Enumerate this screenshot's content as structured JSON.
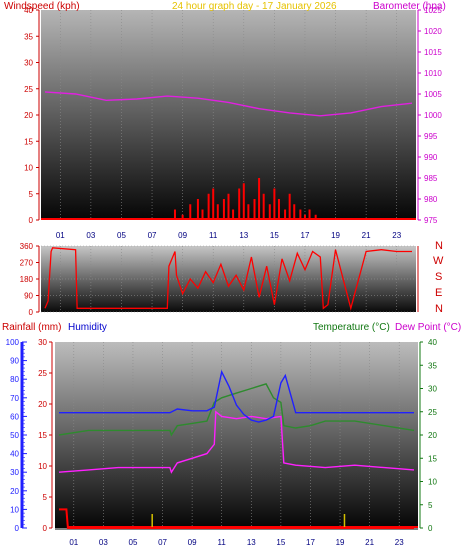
{
  "header": {
    "left_label": "Windspeed (kph)",
    "center_label": "24 hour graph day - 17 January 2026",
    "right_label": "Barometer (hpa)"
  },
  "panel3_header": {
    "rain_label": "Rainfall (mm)",
    "humidity_label": "Humidity",
    "temp_label": "Temperature (°C)",
    "dew_label": "Dew Point (°C)"
  },
  "compass": [
    "N",
    "W",
    "S",
    "E",
    "N"
  ],
  "x_ticks": [
    "01",
    "03",
    "05",
    "07",
    "09",
    "11",
    "13",
    "15",
    "17",
    "19",
    "21",
    "23"
  ],
  "colors": {
    "wind": "#ff0000",
    "barometer": "#e020e0",
    "temperature": "#2e8b2e",
    "humidity": "#2020ff",
    "dew_point": "#ff20ff",
    "rainfall": "#ff0000",
    "title": "#ffd700"
  },
  "chart_data": [
    {
      "type": "line",
      "panel": "wind_barometer",
      "x_ticks": [
        "01",
        "03",
        "05",
        "07",
        "09",
        "11",
        "13",
        "15",
        "17",
        "19",
        "21",
        "23"
      ],
      "ylabel": "Windspeed (kph)",
      "y2label": "Barometer (hpa)",
      "ylim": [
        0,
        40
      ],
      "yticks": [
        0,
        5,
        10,
        15,
        20,
        25,
        30,
        35,
        40
      ],
      "y2lim": [
        975,
        1025
      ],
      "y2ticks": [
        975,
        980,
        985,
        990,
        995,
        1000,
        1005,
        1010,
        1015,
        1020,
        1025
      ],
      "series": [
        {
          "name": "Barometer (hpa)",
          "axis": "right",
          "x": [
            0,
            2,
            4,
            6,
            8,
            10,
            12,
            14,
            16,
            18,
            20,
            22,
            24
          ],
          "values": [
            1005.5,
            1005.0,
            1003.5,
            1003.8,
            1004.5,
            1004.0,
            1003.0,
            1001.5,
            1000.5,
            999.8,
            1000.5,
            1002.0,
            1002.8
          ]
        },
        {
          "name": "Windspeed (kph)",
          "axis": "left",
          "style": "bars",
          "x": [
            8.5,
            9.0,
            9.5,
            10.0,
            10.3,
            10.7,
            11.0,
            11.3,
            11.7,
            12.0,
            12.3,
            12.7,
            13.0,
            13.3,
            13.7,
            14.0,
            14.3,
            14.7,
            15.0,
            15.3,
            15.7,
            16.0,
            16.3,
            16.7,
            17.0,
            17.3,
            17.7
          ],
          "values": [
            2,
            1,
            3,
            4,
            2,
            5,
            6,
            3,
            4,
            5,
            2,
            6,
            7,
            3,
            4,
            8,
            5,
            3,
            6,
            4,
            2,
            5,
            3,
            2,
            1,
            2,
            1
          ]
        }
      ]
    },
    {
      "type": "line",
      "panel": "wind_direction",
      "x_ticks": [
        "01",
        "03",
        "05",
        "07",
        "09",
        "11",
        "13",
        "15",
        "17",
        "19",
        "21",
        "23"
      ],
      "ylabel": "",
      "ylim": [
        0,
        360
      ],
      "yticks": [
        0,
        90,
        180,
        270,
        360
      ],
      "y_labels_extra": [
        "0",
        "90",
        "180",
        "270",
        "360"
      ],
      "series": [
        {
          "name": "Wind direction",
          "x": [
            0,
            0.2,
            0.4,
            0.5,
            2.0,
            2.1,
            5.0,
            5.1,
            8.0,
            8.1,
            8.5,
            8.6,
            9.0,
            9.5,
            10.0,
            10.5,
            11.0,
            11.5,
            12.0,
            12.5,
            13.0,
            13.5,
            14.0,
            14.5,
            15.0,
            15.5,
            16.0,
            16.5,
            17.0,
            17.5,
            18.0,
            18.2,
            18.5,
            19.0,
            20.0,
            21.0,
            22.0,
            23.0,
            24.0
          ],
          "values": [
            20,
            60,
            330,
            350,
            340,
            20,
            20,
            20,
            20,
            250,
            330,
            200,
            100,
            180,
            130,
            220,
            160,
            260,
            140,
            200,
            120,
            300,
            80,
            250,
            40,
            290,
            170,
            320,
            230,
            330,
            300,
            20,
            40,
            340,
            20,
            330,
            340,
            330,
            330
          ]
        }
      ]
    },
    {
      "type": "line",
      "panel": "temperature_humidity",
      "x_ticks": [
        "01",
        "03",
        "05",
        "07",
        "09",
        "11",
        "13",
        "15",
        "17",
        "19",
        "21",
        "23"
      ],
      "ylabel": "Rainfall (mm)",
      "y2label": "Temperature (°C)",
      "ylim": [
        0,
        30
      ],
      "yticks": [
        0,
        5,
        10,
        15,
        20,
        25,
        30
      ],
      "humidity_lim": [
        0,
        100
      ],
      "humidity_ticks": [
        0,
        10,
        20,
        30,
        40,
        50,
        60,
        70,
        80,
        90,
        100
      ],
      "y2lim": [
        0,
        40
      ],
      "y2ticks": [
        0,
        5,
        10,
        15,
        20,
        25,
        30,
        35,
        40
      ],
      "series": [
        {
          "name": "Humidity",
          "axis": "humidity",
          "x": [
            0,
            2,
            4,
            6,
            7.5,
            8,
            9,
            10,
            10.5,
            11,
            11.5,
            12,
            12.5,
            13,
            13.5,
            14,
            14.5,
            15,
            15.3,
            16,
            18,
            20,
            22,
            24
          ],
          "values": [
            62,
            62,
            62,
            62,
            62,
            64,
            63,
            63,
            65,
            84,
            76,
            66,
            61,
            58,
            57,
            58,
            60,
            78,
            82,
            62,
            62,
            62,
            62,
            62
          ]
        },
        {
          "name": "Temperature (°C)",
          "axis": "right",
          "x": [
            0,
            1,
            2,
            4,
            6,
            7.5,
            7.6,
            8,
            9,
            10,
            10.5,
            11,
            12,
            13,
            14,
            14.5,
            15,
            15.2,
            16,
            17,
            18,
            20,
            22,
            24
          ],
          "values": [
            20,
            20.5,
            21,
            21,
            21,
            21,
            20,
            22,
            22.5,
            23,
            27,
            28,
            29,
            30,
            31,
            28,
            27,
            22,
            21.5,
            22,
            23,
            23,
            22,
            21
          ]
        },
        {
          "name": "Dew Point (°C)",
          "axis": "right",
          "x": [
            0,
            2,
            4,
            6,
            7.5,
            7.6,
            8,
            9,
            10,
            10.5,
            10.6,
            11,
            12,
            13,
            14,
            15,
            15.2,
            16,
            18,
            20,
            22,
            24
          ],
          "values": [
            12,
            12.5,
            13,
            13,
            13,
            12,
            14,
            15,
            16,
            18,
            25,
            24,
            23.5,
            24,
            23.5,
            24,
            14,
            13.5,
            13,
            13.5,
            13,
            12.5
          ]
        },
        {
          "name": "Rainfall (mm)",
          "axis": "left",
          "style": "steps",
          "x": [
            0,
            0.5,
            0.6,
            24
          ],
          "values": [
            3,
            3,
            0,
            0
          ]
        }
      ]
    }
  ]
}
